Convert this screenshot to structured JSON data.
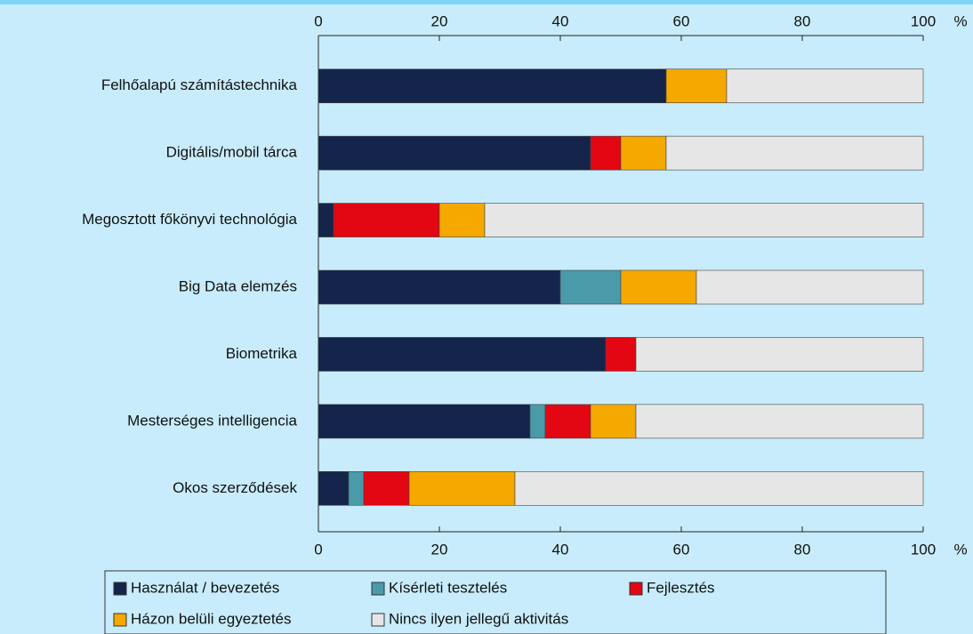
{
  "chart_data": {
    "type": "stacked-bar-horizontal",
    "categories": [
      "Felhőalapú számítástechnika",
      "Digitális/mobil tárca",
      "Megosztott főkönyvi technológia",
      "Big Data elemzés",
      "Biometrika",
      "Mesterséges intelligencia",
      "Okos szerződések"
    ],
    "series": [
      {
        "name": "Használat / bevezetés",
        "color": "#14244a",
        "values": [
          57.5,
          45,
          2.5,
          40,
          47.5,
          35,
          5
        ]
      },
      {
        "name": "Kísérleti tesztelés",
        "color": "#4a9aaa",
        "values": [
          0,
          0,
          0,
          10,
          0,
          2.5,
          2.5
        ]
      },
      {
        "name": "Fejlesztés",
        "color": "#e30613",
        "values": [
          0,
          5,
          17.5,
          0,
          5,
          7.5,
          7.5
        ]
      },
      {
        "name": "Házon belüli egyeztetés",
        "color": "#f5a800",
        "values": [
          10,
          7.5,
          7.5,
          12.5,
          0,
          7.5,
          17.5
        ]
      },
      {
        "name": "Nincs ilyen jellegű aktivitás",
        "color": "#e6e6e6",
        "values": [
          32.5,
          42.5,
          72.5,
          37.5,
          47.5,
          47.5,
          67.5
        ]
      }
    ],
    "xlim": [
      0,
      100
    ],
    "xticks": [
      0,
      20,
      40,
      60,
      80,
      100
    ],
    "x_unit": "%"
  }
}
